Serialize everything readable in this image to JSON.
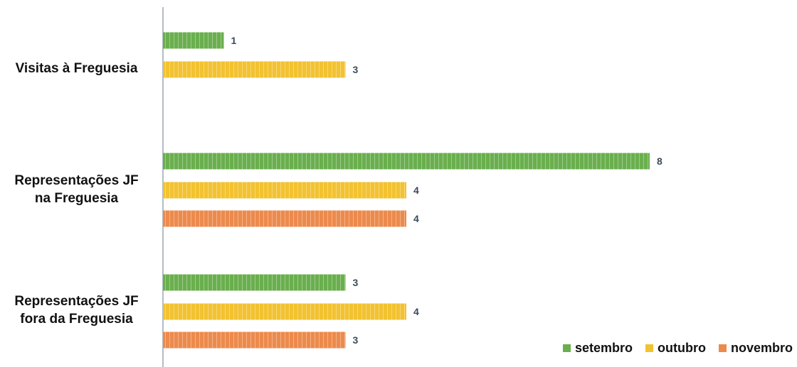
{
  "chart_data": {
    "type": "bar",
    "orientation": "horizontal",
    "categories": [
      [
        "Visitas à Freguesia"
      ],
      [
        "Representações JF",
        "na Freguesia"
      ],
      [
        "Representações JF",
        "fora da Freguesia"
      ]
    ],
    "series": [
      {
        "name": "setembro",
        "color": "#6aaf4e",
        "values": [
          1,
          8,
          3
        ]
      },
      {
        "name": "outubro",
        "color": "#f2c230",
        "values": [
          3,
          4,
          4
        ]
      },
      {
        "name": "novembro",
        "color": "#ec8a4c",
        "values": [
          null,
          4,
          3
        ]
      }
    ],
    "xlim": [
      0,
      8
    ],
    "data_labels": true,
    "grid": false,
    "legend_position": "bottom-right",
    "label_color": "#3b4a5c"
  }
}
